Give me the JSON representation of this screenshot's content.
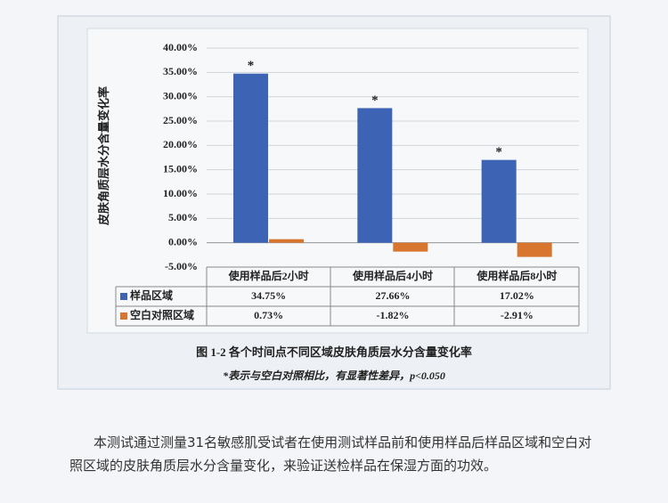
{
  "chart_data": {
    "type": "bar",
    "y_label": "皮肤角质层水分含量变化率",
    "categories": [
      "使用样品后2小时",
      "使用样品后4小时",
      "使用样品后8小时"
    ],
    "series": [
      {
        "name": "样品区域",
        "color": "#3d63b5",
        "values": [
          34.75,
          27.66,
          17.02
        ],
        "value_labels": [
          "34.75%",
          "27.66%",
          "17.02%"
        ]
      },
      {
        "name": "空白对照区域",
        "color": "#d8752f",
        "values": [
          0.73,
          -1.82,
          -2.91
        ],
        "value_labels": [
          "0.73%",
          "-1.82%",
          "-2.91%"
        ]
      }
    ],
    "significance_marks": [
      "*",
      "*",
      "*"
    ],
    "ylim": [
      -5,
      40
    ],
    "yticks": [
      {
        "value": -5,
        "label": "-5.00%"
      },
      {
        "value": 0,
        "label": "0.00%"
      },
      {
        "value": 5,
        "label": "5.00%"
      },
      {
        "value": 10,
        "label": "10.00%"
      },
      {
        "value": 15,
        "label": "15.00%"
      },
      {
        "value": 20,
        "label": "20.00%"
      },
      {
        "value": 25,
        "label": "25.00%"
      },
      {
        "value": 30,
        "label": "30.00%"
      },
      {
        "value": 35,
        "label": "35.00%"
      },
      {
        "value": 40,
        "label": "40.00%"
      }
    ],
    "grid": true,
    "caption": "图 1-2  各个时间点不同区域皮肤角质层水分含量变化率",
    "note": "*表示与空白对照相比，有显著性差异，p<0.050"
  },
  "body": {
    "paragraph": "本测试通过测量31名敏感肌受试者在使用测试样品前和使用样品后样品区域和空白对照区域的皮肤角质层水分含量变化，来验证送检样品在保湿方面的功效。"
  }
}
